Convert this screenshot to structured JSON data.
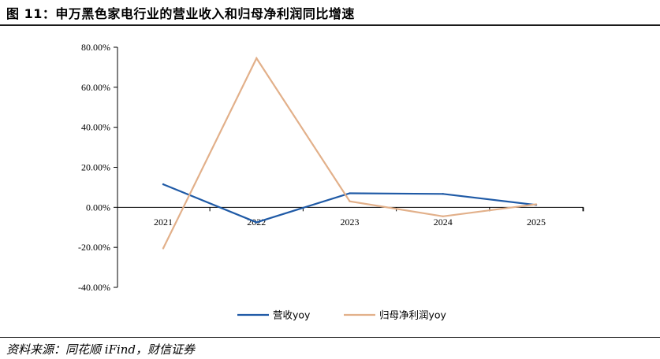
{
  "figure": {
    "title": "图 11：申万黑色家电行业的营业收入和归母净利润同比增速",
    "source": "资料来源：同花顺 iFind，财信证券"
  },
  "chart_data": {
    "type": "line",
    "x": [
      "2021",
      "2022",
      "2023",
      "2024",
      "2025"
    ],
    "ylim": [
      -40,
      80
    ],
    "yticks": [
      80,
      60,
      40,
      20,
      0,
      -20,
      -40
    ],
    "ytick_labels": [
      "80.00%",
      "60.00%",
      "40.00%",
      "20.00%",
      "0.00%",
      "-20.00%",
      "-40.00%"
    ],
    "series": [
      {
        "name": "营收yoy",
        "color": "#1f5aa6",
        "values": [
          11.5,
          -7.5,
          7.0,
          6.7,
          1.2
        ]
      },
      {
        "name": "归母净利润yoy",
        "color": "#e2b08a",
        "values": [
          -20.5,
          74.5,
          3.0,
          -4.5,
          1.5
        ]
      }
    ],
    "legend_position": "bottom-center",
    "grid": false
  }
}
